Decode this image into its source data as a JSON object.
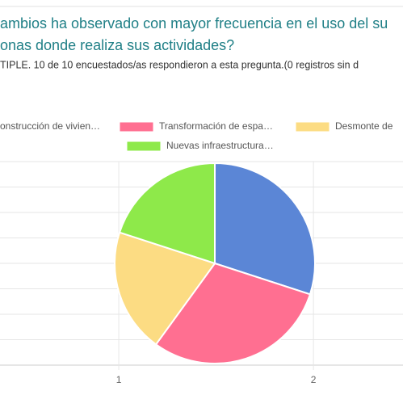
{
  "chart_data": {
    "type": "pie",
    "title": [
      "ambios ha observado con mayor frecuencia en el uso del su",
      "onas donde realiza sus actividades?"
    ],
    "subtitle": "TIPLE. 10 de 10 encuestados/as respondieron a esta pregunta.(0 registros sin d",
    "categories": [
      "onstrucción de vivien…",
      "Transformación de espa…",
      "Desmonte de",
      "Nuevas infraestructura…"
    ],
    "values": [
      3,
      3,
      2,
      2
    ],
    "colors": [
      "#5b86d6",
      "#ff6f91",
      "#fcdc83",
      "#8ee94a"
    ],
    "xlim": [
      0.39,
      2.46
    ],
    "xticks": [
      1,
      2
    ],
    "grid": true
  }
}
